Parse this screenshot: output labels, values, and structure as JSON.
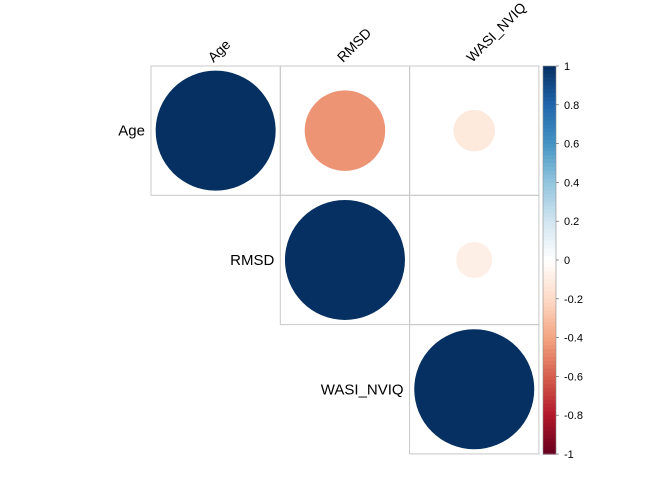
{
  "chart_data": {
    "type": "heatmap",
    "style": "corrplot-circle-upper",
    "variables": [
      "Age",
      "RMSD",
      "WASI_NVIQ"
    ],
    "matrix": [
      [
        1.0,
        -0.45,
        -0.12
      ],
      [
        -0.45,
        1.0,
        -0.09
      ],
      [
        -0.12,
        -0.09,
        1.0
      ]
    ],
    "color_range": [
      -1,
      1
    ],
    "colorbar_ticks": [
      "1",
      "0.8",
      "0.6",
      "0.4",
      "0.2",
      "0",
      "-0.2",
      "-0.4",
      "-0.6",
      "-0.8",
      "-1"
    ],
    "palette": [
      "#67001F",
      "#B2182B",
      "#D6604D",
      "#F4A582",
      "#FDDBC7",
      "#FFFFFF",
      "#D1E5F0",
      "#92C5DE",
      "#4393C3",
      "#2166AC",
      "#053061"
    ]
  }
}
